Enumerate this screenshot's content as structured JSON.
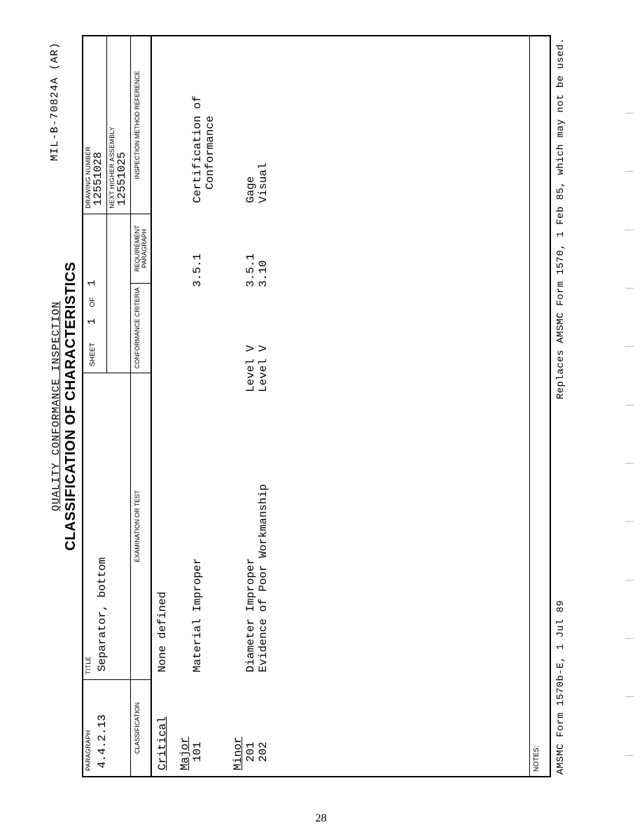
{
  "doc_id": "MIL-B-70824A (AR)",
  "header": {
    "line1": "QUALITY CONFORMANCE INSPECTION",
    "line2": "CLASSIFICATION OF CHARACTERISTICS"
  },
  "top": {
    "paragraph_label": "PARAGRAPH",
    "paragraph": "4.4.2.13",
    "title_label": "TITLE",
    "title": "Separator, bottom",
    "sheet_label": "SHEET",
    "sheet": "1",
    "of_label": "OF",
    "of": "1",
    "drawing_label": "DRAWING NUMBER",
    "drawing": "12551028",
    "assembly_label": "NEXT HIGHER ASSEMBLY",
    "assembly": "12551025"
  },
  "cols": {
    "classification": "CLASSIFICATION",
    "examination": "EXAMINATION OR TEST",
    "conformance": "CONFORMANCE CRITERIA",
    "requirement": "REQUIREMENT PARAGRAPH",
    "inspection": "INSPECTION METHOD REFERENCE"
  },
  "body": {
    "critical": {
      "label": "Critical",
      "text": "None defined"
    },
    "major": {
      "label": "Major",
      "rows": [
        {
          "id": "101",
          "exam": "Material Improper",
          "conf": "",
          "req": "3.5.1",
          "insp": "Certification of Conformance"
        }
      ]
    },
    "minor": {
      "label": "Minor",
      "rows": [
        {
          "id": "201",
          "exam": "Diameter Improper",
          "conf": "Level V",
          "req": "3.5.1",
          "insp": "Gage"
        },
        {
          "id": "202",
          "exam": "Evidence of Poor Workmanship",
          "conf": "Level V",
          "req": "3.10",
          "insp": "Visual"
        }
      ]
    }
  },
  "notes_label": "NOTES:",
  "footer": {
    "left": "AMSMC Form 1570b-E, 1 Jul 89",
    "right": "Replaces AMSMC Form 1570, 1 Feb 85, which may not be used."
  },
  "page_number": "28"
}
